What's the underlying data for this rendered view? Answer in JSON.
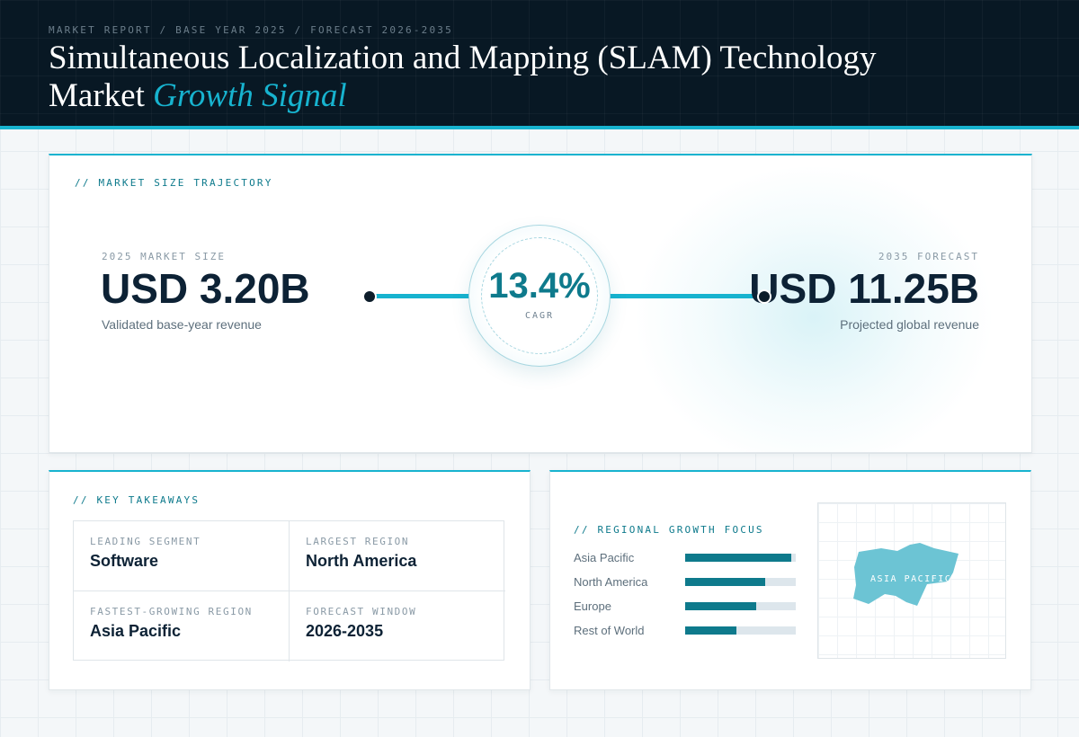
{
  "header": {
    "eyebrow": "MARKET REPORT / BASE YEAR 2025 / FORECAST 2026-2035",
    "title_main": "Simultaneous Localization and Mapping (SLAM) Technology Market",
    "title_accent": "Growth Signal"
  },
  "trajectory": {
    "section_label": "// MARKET SIZE TRAJECTORY",
    "start": {
      "label": "2025 MARKET SIZE",
      "value": "USD 3.20B",
      "sub": "Validated base-year revenue"
    },
    "cagr": {
      "value": "13.4%",
      "label": "CAGR"
    },
    "end": {
      "label": "2035 FORECAST",
      "value": "USD 11.25B",
      "sub": "Projected global revenue"
    }
  },
  "takeaways": {
    "section_label": "// KEY TAKEAWAYS",
    "items": [
      {
        "label": "LEADING SEGMENT",
        "value": "Software"
      },
      {
        "label": "LARGEST REGION",
        "value": "North America"
      },
      {
        "label": "FASTEST-GROWING REGION",
        "value": "Asia Pacific"
      },
      {
        "label": "FORECAST WINDOW",
        "value": "2026-2035"
      }
    ]
  },
  "regional": {
    "section_label": "// REGIONAL GROWTH FOCUS",
    "regions": [
      {
        "name": "Asia Pacific",
        "level": 0.96
      },
      {
        "name": "North America",
        "level": 0.72
      },
      {
        "name": "Europe",
        "level": 0.64
      },
      {
        "name": "Rest of World",
        "level": 0.46
      }
    ],
    "map_label": "ASIA PACIFIC"
  },
  "colors": {
    "accent": "#17b3cf",
    "accent_dark": "#0e7a8c",
    "header_bg": "#081824",
    "ink": "#0d2235"
  }
}
